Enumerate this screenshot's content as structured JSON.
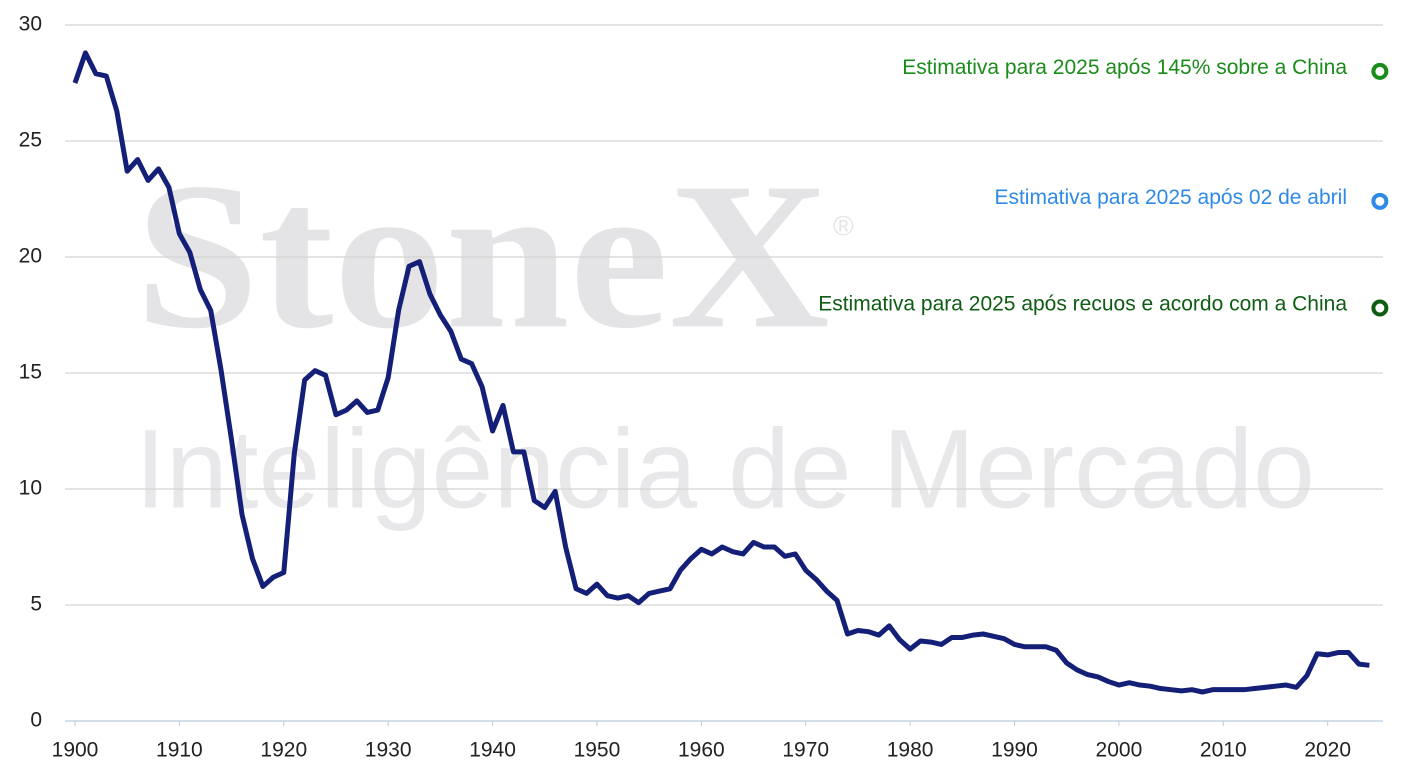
{
  "chart_data": {
    "type": "line",
    "watermark": {
      "brand": "StoneX",
      "mark": "®",
      "subtitle": "Inteligência de Mercado"
    },
    "x": [
      1900,
      1901,
      1902,
      1903,
      1904,
      1905,
      1906,
      1907,
      1908,
      1909,
      1910,
      1911,
      1912,
      1913,
      1914,
      1915,
      1916,
      1917,
      1918,
      1919,
      1920,
      1921,
      1922,
      1923,
      1924,
      1925,
      1926,
      1927,
      1928,
      1929,
      1930,
      1931,
      1932,
      1933,
      1934,
      1935,
      1936,
      1937,
      1938,
      1939,
      1940,
      1941,
      1942,
      1943,
      1944,
      1945,
      1946,
      1947,
      1948,
      1949,
      1950,
      1951,
      1952,
      1953,
      1954,
      1955,
      1956,
      1957,
      1958,
      1959,
      1960,
      1961,
      1962,
      1963,
      1964,
      1965,
      1966,
      1967,
      1968,
      1969,
      1970,
      1971,
      1972,
      1973,
      1974,
      1975,
      1976,
      1977,
      1978,
      1979,
      1980,
      1981,
      1982,
      1983,
      1984,
      1985,
      1986,
      1987,
      1988,
      1989,
      1990,
      1991,
      1992,
      1993,
      1994,
      1995,
      1996,
      1997,
      1998,
      1999,
      2000,
      2001,
      2002,
      2003,
      2004,
      2005,
      2006,
      2007,
      2008,
      2009,
      2010,
      2011,
      2012,
      2013,
      2014,
      2015,
      2016,
      2017,
      2018,
      2019,
      2020,
      2021,
      2022,
      2023,
      2024
    ],
    "series": [
      {
        "color": "#141f78",
        "values": [
          27.5,
          28.8,
          27.9,
          27.8,
          26.3,
          23.7,
          24.2,
          23.3,
          23.8,
          23.0,
          21.0,
          20.2,
          18.6,
          17.7,
          15.1,
          12.1,
          8.9,
          7.0,
          5.8,
          6.2,
          6.4,
          11.5,
          14.7,
          15.1,
          14.9,
          13.2,
          13.4,
          13.8,
          13.3,
          13.4,
          14.8,
          17.7,
          19.6,
          19.8,
          18.4,
          17.5,
          16.8,
          15.6,
          15.4,
          14.4,
          12.5,
          13.6,
          11.6,
          11.6,
          9.5,
          9.2,
          9.9,
          7.5,
          5.7,
          5.5,
          5.9,
          5.4,
          5.3,
          5.4,
          5.1,
          5.5,
          5.6,
          5.7,
          6.5,
          7.0,
          7.4,
          7.2,
          7.5,
          7.3,
          7.2,
          7.7,
          7.5,
          7.5,
          7.1,
          7.2,
          6.5,
          6.1,
          5.6,
          5.2,
          3.75,
          3.9,
          3.85,
          3.7,
          4.1,
          3.5,
          3.1,
          3.45,
          3.4,
          3.3,
          3.6,
          3.6,
          3.7,
          3.75,
          3.65,
          3.55,
          3.3,
          3.2,
          3.2,
          3.2,
          3.05,
          2.5,
          2.2,
          2.0,
          1.9,
          1.7,
          1.55,
          1.65,
          1.55,
          1.5,
          1.4,
          1.35,
          1.3,
          1.35,
          1.25,
          1.35,
          1.35,
          1.35,
          1.35,
          1.4,
          1.45,
          1.5,
          1.55,
          1.45,
          1.95,
          2.9,
          2.85,
          2.95,
          2.95,
          2.45,
          2.4
        ]
      }
    ],
    "estimates": [
      {
        "label": "Estimativa para 2025 após 145% sobre a China",
        "x": 2025,
        "value": 28.0,
        "color": "#1a8c1a"
      },
      {
        "label": "Estimativa para 2025 após 02 de abril",
        "x": 2025,
        "value": 22.4,
        "color": "#2e8ae6"
      },
      {
        "label": "Estimativa para 2025 após recuos e acordo com a China",
        "x": 2025,
        "value": 17.8,
        "color": "#0f5c14"
      }
    ],
    "xlim": [
      1900,
      2025.3
    ],
    "ylim": [
      0,
      30
    ],
    "xticks": [
      1900,
      1910,
      1920,
      1930,
      1940,
      1950,
      1960,
      1970,
      1980,
      1990,
      2000,
      2010,
      2020
    ],
    "yticks": [
      0,
      5,
      10,
      15,
      20,
      25,
      30
    ],
    "grid": true
  }
}
